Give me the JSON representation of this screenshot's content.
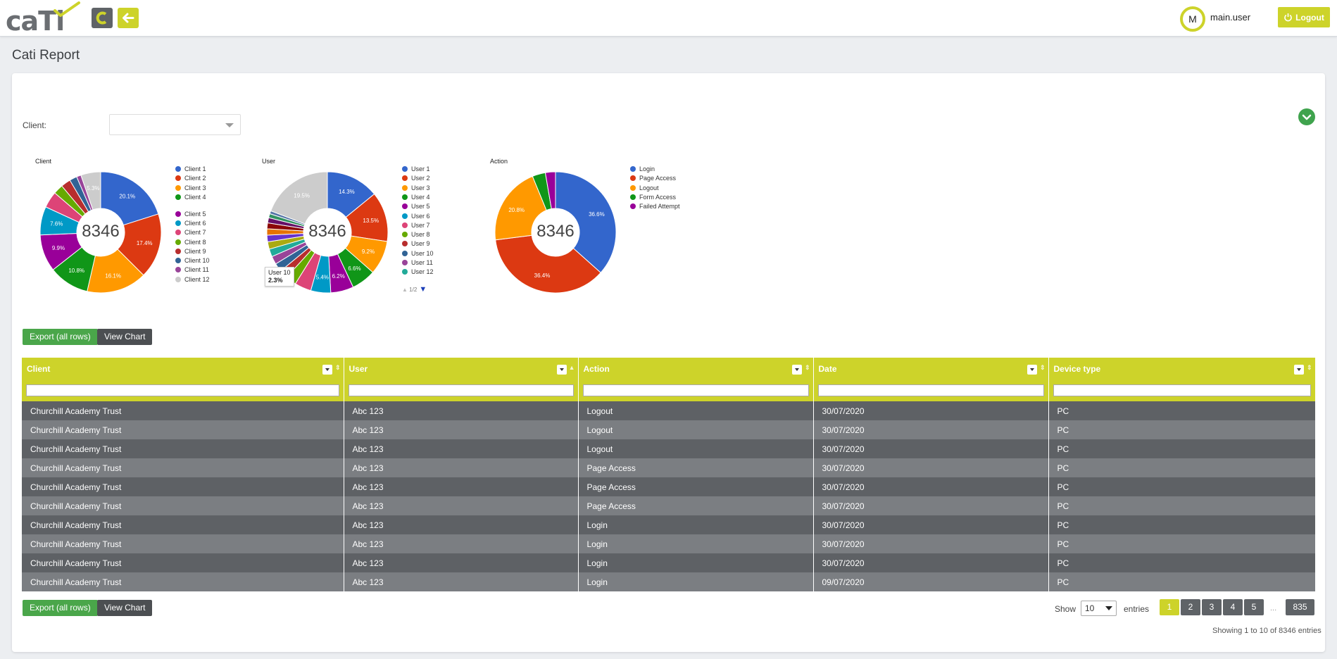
{
  "header": {
    "logo_text": "caTi",
    "avatar_initial": "M",
    "username": "main.user",
    "logout_label": "Logout",
    "brand_color": "#cdd32a"
  },
  "page": {
    "title": "Cati Report"
  },
  "filter": {
    "client_label": "Client:",
    "client_value": ""
  },
  "charts": [
    {
      "title": "Client",
      "total": "8346",
      "legend": [
        "Client 1",
        "Client 2",
        "Client 3",
        "Client 4",
        "Client 5",
        "Client 6",
        "Client 7",
        "Client 8",
        "Client 9",
        "Client 10",
        "Client 11",
        "Client 12"
      ],
      "colors": [
        "#3366cc",
        "#dc3912",
        "#ff9900",
        "#109618",
        "#990099",
        "#0099c6",
        "#dd4477",
        "#66aa00",
        "#b82e2e",
        "#316395",
        "#994499",
        "#cccccc"
      ],
      "values": [
        20.1,
        17.4,
        16.1,
        10.8,
        9.9,
        7.6,
        4.4,
        2.6,
        2.6,
        2.0,
        1.2,
        5.3
      ],
      "labels": [
        "20.1%",
        "17.4%",
        "16.1%",
        "10.8%",
        "9.9%",
        "7.6%",
        "",
        "",
        "",
        "",
        "",
        "5.3%"
      ]
    },
    {
      "title": "User",
      "total": "8346",
      "legend": [
        "User 1",
        "User 2",
        "User 3",
        "User 4",
        "User 5",
        "User 6",
        "User 7",
        "User 8",
        "User 9",
        "User 10",
        "User 11",
        "User 12"
      ],
      "colors": [
        "#3366cc",
        "#dc3912",
        "#ff9900",
        "#109618",
        "#990099",
        "#0099c6",
        "#dd4477",
        "#66aa00",
        "#b82e2e",
        "#316395",
        "#994499",
        "#22aa99",
        "#aaaa11",
        "#6633cc",
        "#e67300",
        "#8b0707",
        "#651067",
        "#329262",
        "#5574a6",
        "#cccccc"
      ],
      "values": [
        14.3,
        13.5,
        9.2,
        6.6,
        6.2,
        5.4,
        4.5,
        2.9,
        2.3,
        2.3,
        2.2,
        2.1,
        2.0,
        1.8,
        1.7,
        1.6,
        1.4,
        1.1,
        0.8,
        19.5
      ],
      "labels": [
        "14.3%",
        "13.5%",
        "9.2%",
        "6.6%",
        "6.2%",
        "5.4%",
        "",
        "",
        "",
        "",
        "",
        "",
        "",
        "",
        "",
        "",
        "",
        "",
        "",
        "19.5%"
      ],
      "tooltip": {
        "name": "User 10",
        "value": "2.3%"
      },
      "pager": "1/2"
    },
    {
      "title": "Action",
      "total": "8346",
      "legend": [
        "Login",
        "Page Access",
        "Logout",
        "Form Access",
        "Failed Attempt"
      ],
      "colors": [
        "#3366cc",
        "#dc3912",
        "#ff9900",
        "#109618",
        "#990099"
      ],
      "values": [
        36.6,
        36.4,
        20.8,
        3.5,
        2.7
      ],
      "labels": [
        "36.6%",
        "36.4%",
        "20.8%",
        "",
        ""
      ]
    }
  ],
  "actions": {
    "export_label": "Export (all rows)",
    "view_chart_label": "View Chart"
  },
  "table": {
    "headers": [
      "Client",
      "User",
      "Action",
      "Date",
      "Device type"
    ],
    "rows": [
      [
        "Churchill Academy Trust",
        "Abc 123",
        "Logout",
        "30/07/2020",
        "PC"
      ],
      [
        "Churchill Academy Trust",
        "Abc 123",
        "Logout",
        "30/07/2020",
        "PC"
      ],
      [
        "Churchill Academy Trust",
        "Abc 123",
        "Logout",
        "30/07/2020",
        "PC"
      ],
      [
        "Churchill Academy Trust",
        "Abc 123",
        "Page Access",
        "30/07/2020",
        "PC"
      ],
      [
        "Churchill Academy Trust",
        "Abc 123",
        "Page Access",
        "30/07/2020",
        "PC"
      ],
      [
        "Churchill Academy Trust",
        "Abc 123",
        "Page Access",
        "30/07/2020",
        "PC"
      ],
      [
        "Churchill Academy Trust",
        "Abc 123",
        "Login",
        "30/07/2020",
        "PC"
      ],
      [
        "Churchill Academy Trust",
        "Abc 123",
        "Login",
        "30/07/2020",
        "PC"
      ],
      [
        "Churchill Academy Trust",
        "Abc 123",
        "Login",
        "30/07/2020",
        "PC"
      ],
      [
        "Churchill Academy Trust",
        "Abc 123",
        "Login",
        "09/07/2020",
        "PC"
      ]
    ]
  },
  "pagination": {
    "show_label": "Show",
    "page_size": "10",
    "entries_label": "entries",
    "pages": [
      "1",
      "2",
      "3",
      "4",
      "5"
    ],
    "ellipsis": "...",
    "last_page": "835",
    "summary": "Showing 1 to 10 of 8346 entries"
  }
}
